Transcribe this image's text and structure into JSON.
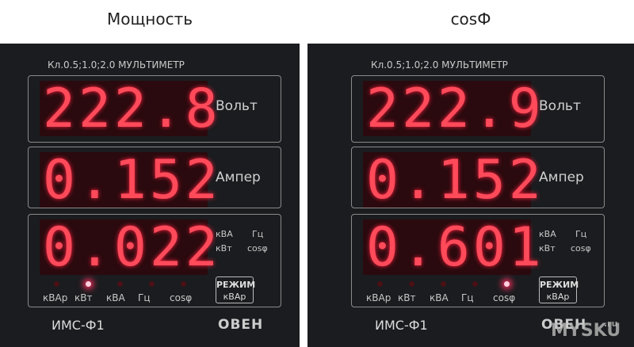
{
  "panels": [
    {
      "title": "Мощность",
      "header": "Кл.0.5;1.0;2.0 МУЛЬТИМЕТР",
      "rows": [
        {
          "reading": "222.8",
          "unit": "Вольт"
        },
        {
          "reading": "0.152",
          "unit": "Ампер"
        },
        {
          "reading": "0.022"
        }
      ],
      "mode_labels": [
        "кВА",
        "Гц",
        "кВт",
        "cosφ"
      ],
      "mode_button": "РЕЖИМ",
      "mode_button_sub": "кВАр",
      "indicators": [
        "кВАр",
        "кВт",
        "кВА",
        "Гц",
        "cosφ"
      ],
      "lit_indicator": 1,
      "model": "ИМС-Ф1",
      "brand": "ОВЕН"
    },
    {
      "title": "cosФ",
      "header": "Кл.0.5;1.0;2.0 МУЛЬТИМЕТР",
      "rows": [
        {
          "reading": "222.9",
          "unit": "Вольт"
        },
        {
          "reading": "0.152",
          "unit": "Ампер"
        },
        {
          "reading": "0.601"
        }
      ],
      "mode_labels": [
        "кВА",
        "Гц",
        "кВт",
        "cosφ"
      ],
      "mode_button": "РЕЖИМ",
      "mode_button_sub": "кВАр",
      "indicators": [
        "кВАр",
        "кВт",
        "кВА",
        "Гц",
        "cosφ"
      ],
      "lit_indicator": 4,
      "model": "ИМС-Ф1",
      "brand": "ОВЕН"
    }
  ],
  "watermark": "MYSKU",
  "watermark_suffix": ".ru"
}
